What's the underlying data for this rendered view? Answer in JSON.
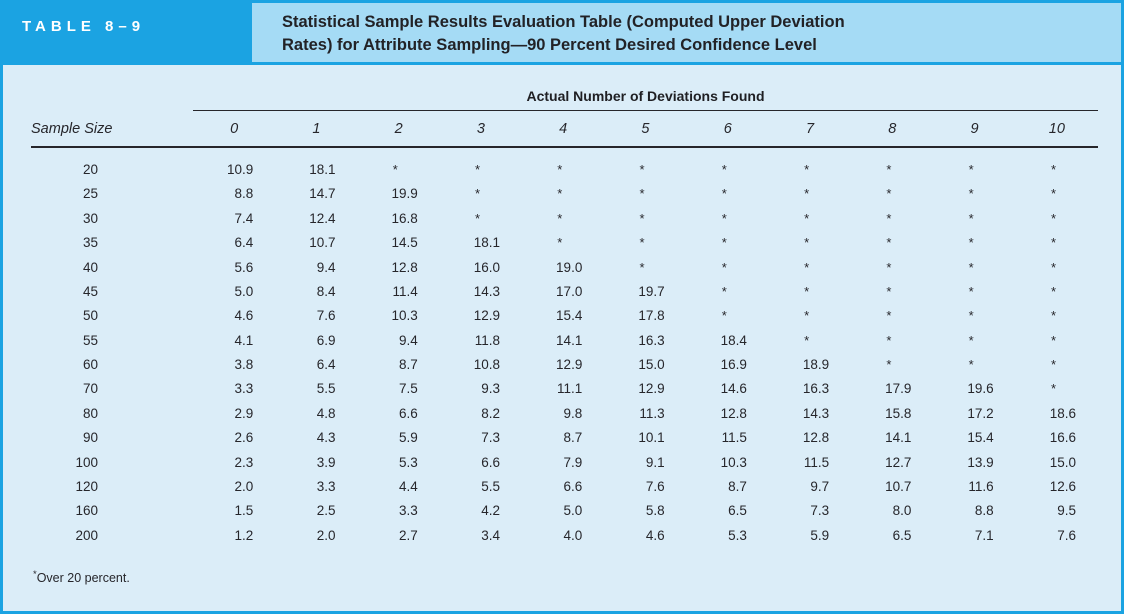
{
  "header": {
    "label": "TABLE 8–9",
    "title_line1": "Statistical Sample Results Evaluation Table (Computed Upper Deviation",
    "title_line2": "Rates) for Attribute Sampling—90 Percent Desired Confidence Level"
  },
  "table": {
    "span_header": "Actual Number of Deviations Found",
    "row_axis_label": "Sample Size",
    "col_headers": [
      "0",
      "1",
      "2",
      "3",
      "4",
      "5",
      "6",
      "7",
      "8",
      "9",
      "10"
    ],
    "rows": [
      {
        "size": "20",
        "values": [
          "10.9",
          "18.1",
          "*",
          "*",
          "*",
          "*",
          "*",
          "*",
          "*",
          "*",
          "*"
        ]
      },
      {
        "size": "25",
        "values": [
          "8.8",
          "14.7",
          "19.9",
          "*",
          "*",
          "*",
          "*",
          "*",
          "*",
          "*",
          "*"
        ]
      },
      {
        "size": "30",
        "values": [
          "7.4",
          "12.4",
          "16.8",
          "*",
          "*",
          "*",
          "*",
          "*",
          "*",
          "*",
          "*"
        ]
      },
      {
        "size": "35",
        "values": [
          "6.4",
          "10.7",
          "14.5",
          "18.1",
          "*",
          "*",
          "*",
          "*",
          "*",
          "*",
          "*"
        ]
      },
      {
        "size": "40",
        "values": [
          "5.6",
          "9.4",
          "12.8",
          "16.0",
          "19.0",
          "*",
          "*",
          "*",
          "*",
          "*",
          "*"
        ]
      },
      {
        "size": "45",
        "values": [
          "5.0",
          "8.4",
          "11.4",
          "14.3",
          "17.0",
          "19.7",
          "*",
          "*",
          "*",
          "*",
          "*"
        ]
      },
      {
        "size": "50",
        "values": [
          "4.6",
          "7.6",
          "10.3",
          "12.9",
          "15.4",
          "17.8",
          "*",
          "*",
          "*",
          "*",
          "*"
        ]
      },
      {
        "size": "55",
        "values": [
          "4.1",
          "6.9",
          "9.4",
          "11.8",
          "14.1",
          "16.3",
          "18.4",
          "*",
          "*",
          "*",
          "*"
        ]
      },
      {
        "size": "60",
        "values": [
          "3.8",
          "6.4",
          "8.7",
          "10.8",
          "12.9",
          "15.0",
          "16.9",
          "18.9",
          "*",
          "*",
          "*"
        ]
      },
      {
        "size": "70",
        "values": [
          "3.3",
          "5.5",
          "7.5",
          "9.3",
          "11.1",
          "12.9",
          "14.6",
          "16.3",
          "17.9",
          "19.6",
          "*"
        ]
      },
      {
        "size": "80",
        "values": [
          "2.9",
          "4.8",
          "6.6",
          "8.2",
          "9.8",
          "11.3",
          "12.8",
          "14.3",
          "15.8",
          "17.2",
          "18.6"
        ]
      },
      {
        "size": "90",
        "values": [
          "2.6",
          "4.3",
          "5.9",
          "7.3",
          "8.7",
          "10.1",
          "11.5",
          "12.8",
          "14.1",
          "15.4",
          "16.6"
        ]
      },
      {
        "size": "100",
        "values": [
          "2.3",
          "3.9",
          "5.3",
          "6.6",
          "7.9",
          "9.1",
          "10.3",
          "11.5",
          "12.7",
          "13.9",
          "15.0"
        ]
      },
      {
        "size": "120",
        "values": [
          "2.0",
          "3.3",
          "4.4",
          "5.5",
          "6.6",
          "7.6",
          "8.7",
          "9.7",
          "10.7",
          "11.6",
          "12.6"
        ]
      },
      {
        "size": "160",
        "values": [
          "1.5",
          "2.5",
          "3.3",
          "4.2",
          "5.0",
          "5.8",
          "6.5",
          "7.3",
          "8.0",
          "8.8",
          "9.5"
        ]
      },
      {
        "size": "200",
        "values": [
          "1.2",
          "2.0",
          "2.7",
          "3.4",
          "4.0",
          "4.6",
          "5.3",
          "5.9",
          "6.5",
          "7.1",
          "7.6"
        ]
      }
    ]
  },
  "footnote": {
    "marker": "*",
    "text": "Over 20 percent."
  },
  "colors": {
    "accent_blue": "#1BA3E2",
    "title_bg": "#A5DBF5",
    "body_bg": "#DBEDF8",
    "rule_dark": "#26262B",
    "label_text": "#FFFFFF"
  }
}
